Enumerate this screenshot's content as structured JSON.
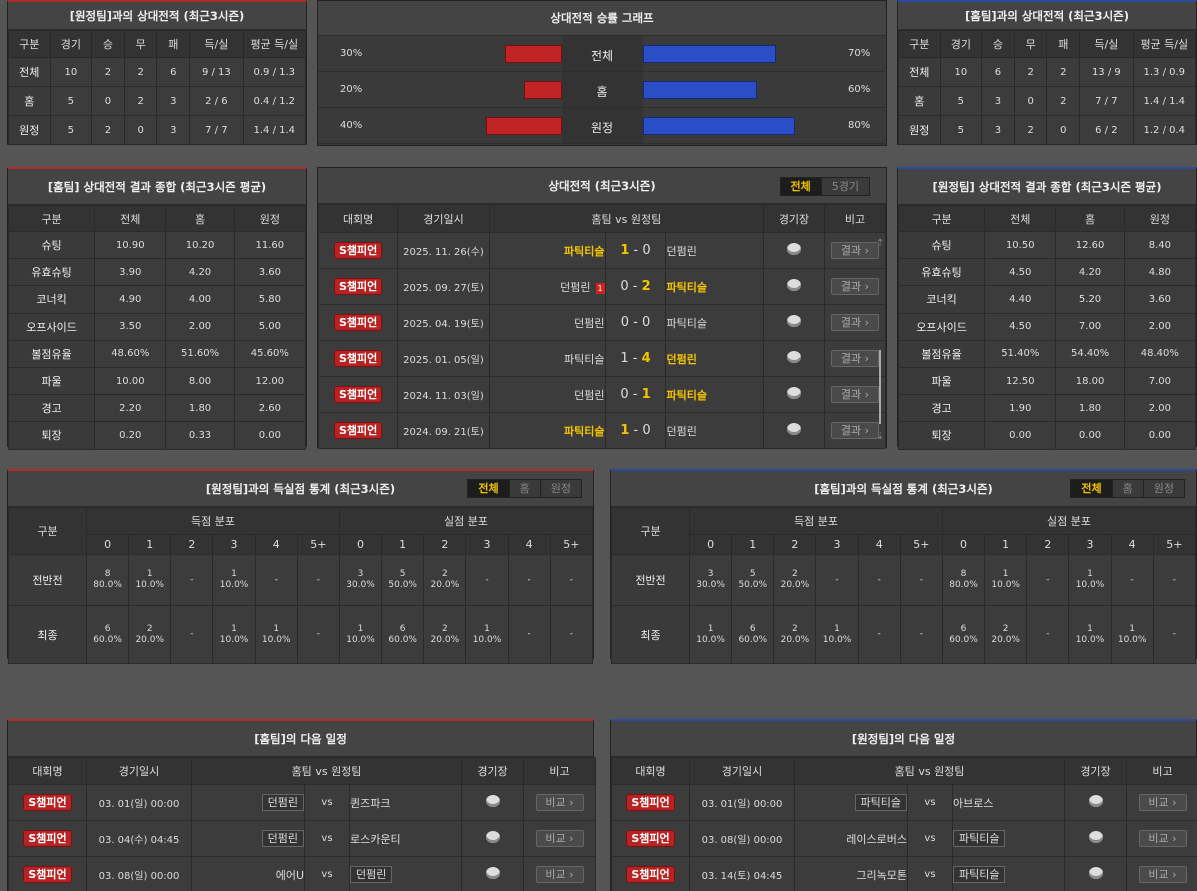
{
  "h2h_away": {
    "title": "[원정팀]과의 상대전적 (최근3시즌)",
    "headers": [
      "구분",
      "경기",
      "승",
      "무",
      "패",
      "득/실",
      "평균 득/실"
    ],
    "rows": [
      [
        "전체",
        "10",
        "2",
        "2",
        "6",
        "9 / 13",
        "0.9 / 1.3"
      ],
      [
        "홈",
        "5",
        "0",
        "2",
        "3",
        "2 / 6",
        "0.4 / 1.2"
      ],
      [
        "원정",
        "5",
        "2",
        "0",
        "3",
        "7 / 7",
        "1.4 / 1.4"
      ]
    ]
  },
  "h2h_home": {
    "title": "[홈팀]과의 상대전적 (최근3시즌)",
    "headers": [
      "구분",
      "경기",
      "승",
      "무",
      "패",
      "득/실",
      "평균 득/실"
    ],
    "rows": [
      [
        "전체",
        "10",
        "6",
        "2",
        "2",
        "13 / 9",
        "1.3 / 0.9"
      ],
      [
        "홈",
        "5",
        "3",
        "0",
        "2",
        "7 / 7",
        "1.4 / 1.4"
      ],
      [
        "원정",
        "5",
        "3",
        "2",
        "0",
        "6 / 2",
        "1.2 / 0.4"
      ]
    ]
  },
  "win_graph": {
    "title": "상대전적 승률 그래프",
    "rows": [
      {
        "label": "전체",
        "left": "30%",
        "right": "70%",
        "left_val": 30,
        "right_val": 70
      },
      {
        "label": "홈",
        "left": "20%",
        "right": "60%",
        "left_val": 20,
        "right_val": 60
      },
      {
        "label": "원정",
        "left": "40%",
        "right": "80%",
        "left_val": 40,
        "right_val": 80
      }
    ]
  },
  "home_summary": {
    "title": "[홈팀] 상대전적 결과 종합 (최근3시즌 평균)",
    "headers": [
      "구분",
      "전체",
      "홈",
      "원정"
    ],
    "rows": [
      [
        "슈팅",
        "10.90",
        "10.20",
        "11.60"
      ],
      [
        "유효슈팅",
        "3.90",
        "4.20",
        "3.60"
      ],
      [
        "코너킥",
        "4.90",
        "4.00",
        "5.80"
      ],
      [
        "오프사이드",
        "3.50",
        "2.00",
        "5.00"
      ],
      [
        "볼점유율",
        "48.60%",
        "51.60%",
        "45.60%"
      ],
      [
        "파울",
        "10.00",
        "8.00",
        "12.00"
      ],
      [
        "경고",
        "2.20",
        "1.80",
        "2.60"
      ],
      [
        "퇴장",
        "0.20",
        "0.33",
        "0.00"
      ]
    ]
  },
  "away_summary": {
    "title": "[원정팀] 상대전적 결과 종합 (최근3시즌 평균)",
    "headers": [
      "구분",
      "전체",
      "홈",
      "원정"
    ],
    "rows": [
      [
        "슈팅",
        "10.50",
        "12.60",
        "8.40"
      ],
      [
        "유효슈팅",
        "4.50",
        "4.20",
        "4.80"
      ],
      [
        "코너킥",
        "4.40",
        "5.20",
        "3.60"
      ],
      [
        "오프사이드",
        "4.50",
        "7.00",
        "2.00"
      ],
      [
        "볼점유율",
        "51.40%",
        "54.40%",
        "48.40%"
      ],
      [
        "파울",
        "12.50",
        "18.00",
        "7.00"
      ],
      [
        "경고",
        "1.90",
        "1.80",
        "2.00"
      ],
      [
        "퇴장",
        "0.00",
        "0.00",
        "0.00"
      ]
    ]
  },
  "h2h_matches": {
    "title": "상대전적 (최근3시즌)",
    "tabs": [
      "전체",
      "5경기"
    ],
    "headers": {
      "league": "대회명",
      "date": "경기일시",
      "home": "홈팀",
      "vs": "vs",
      "away": "원정팀",
      "stadium": "경기장",
      "note": "비고"
    },
    "rows": [
      {
        "league": "S챔피언",
        "date": "2025. 11. 26(수)",
        "home": "파틱티슬",
        "hs": "1",
        "as": "0",
        "away": "던펌린",
        "win": "home",
        "card": ""
      },
      {
        "league": "S챔피언",
        "date": "2025. 09. 27(토)",
        "home": "던펌린",
        "hs": "0",
        "as": "2",
        "away": "파틱티슬",
        "win": "away",
        "card": "1"
      },
      {
        "league": "S챔피언",
        "date": "2025. 04. 19(토)",
        "home": "던펌린",
        "hs": "0",
        "as": "0",
        "away": "파틱티슬",
        "win": "none",
        "card": ""
      },
      {
        "league": "S챔피언",
        "date": "2025. 01. 05(일)",
        "home": "파틱티슬",
        "hs": "1",
        "as": "4",
        "away": "던펌린",
        "win": "away",
        "card": ""
      },
      {
        "league": "S챔피언",
        "date": "2024. 11. 03(일)",
        "home": "던펌린",
        "hs": "0",
        "as": "1",
        "away": "파틱티슬",
        "win": "away",
        "card": ""
      },
      {
        "league": "S챔피언",
        "date": "2024. 09. 21(토)",
        "home": "파틱티슬",
        "hs": "1",
        "as": "0",
        "away": "던펌린",
        "win": "home",
        "card": ""
      }
    ],
    "result_label": "결과"
  },
  "goal_away": {
    "title": "[원정팀]과의 득실점 통계 (최근3시즌)",
    "tabs": [
      "전체",
      "홈",
      "원정"
    ],
    "col_label": "구분",
    "scored": "득점 분포",
    "conceded": "실점 분포",
    "nums": [
      "0",
      "1",
      "2",
      "3",
      "4",
      "5+"
    ],
    "rows": [
      {
        "label": "전반전",
        "cells": [
          [
            "8",
            "80.0%"
          ],
          [
            "1",
            "10.0%"
          ],
          [
            "-",
            ""
          ],
          [
            "1",
            "10.0%"
          ],
          [
            "-",
            ""
          ],
          [
            "-",
            ""
          ],
          [
            "3",
            "30.0%"
          ],
          [
            "5",
            "50.0%"
          ],
          [
            "2",
            "20.0%"
          ],
          [
            "-",
            ""
          ],
          [
            "-",
            ""
          ],
          [
            "-",
            ""
          ]
        ]
      },
      {
        "label": "최종",
        "cells": [
          [
            "6",
            "60.0%"
          ],
          [
            "2",
            "20.0%"
          ],
          [
            "-",
            ""
          ],
          [
            "1",
            "10.0%"
          ],
          [
            "1",
            "10.0%"
          ],
          [
            "-",
            ""
          ],
          [
            "1",
            "10.0%"
          ],
          [
            "6",
            "60.0%"
          ],
          [
            "2",
            "20.0%"
          ],
          [
            "1",
            "10.0%"
          ],
          [
            "-",
            ""
          ],
          [
            "-",
            ""
          ]
        ]
      }
    ]
  },
  "goal_home": {
    "title": "[홈팀]과의 득실점 통계 (최근3시즌)",
    "tabs": [
      "전체",
      "홈",
      "원정"
    ],
    "col_label": "구분",
    "scored": "득점 분포",
    "conceded": "실점 분포",
    "nums": [
      "0",
      "1",
      "2",
      "3",
      "4",
      "5+"
    ],
    "rows": [
      {
        "label": "전반전",
        "cells": [
          [
            "3",
            "30.0%"
          ],
          [
            "5",
            "50.0%"
          ],
          [
            "2",
            "20.0%"
          ],
          [
            "-",
            ""
          ],
          [
            "-",
            ""
          ],
          [
            "-",
            ""
          ],
          [
            "8",
            "80.0%"
          ],
          [
            "1",
            "10.0%"
          ],
          [
            "-",
            ""
          ],
          [
            "1",
            "10.0%"
          ],
          [
            "-",
            ""
          ],
          [
            "-",
            ""
          ]
        ]
      },
      {
        "label": "최종",
        "cells": [
          [
            "1",
            "10.0%"
          ],
          [
            "6",
            "60.0%"
          ],
          [
            "2",
            "20.0%"
          ],
          [
            "1",
            "10.0%"
          ],
          [
            "-",
            ""
          ],
          [
            "-",
            ""
          ],
          [
            "6",
            "60.0%"
          ],
          [
            "2",
            "20.0%"
          ],
          [
            "-",
            ""
          ],
          [
            "1",
            "10.0%"
          ],
          [
            "1",
            "10.0%"
          ],
          [
            "-",
            ""
          ]
        ]
      }
    ]
  },
  "next_home": {
    "title": "[홈팀]의 다음 일정",
    "headers": {
      "league": "대회명",
      "date": "경기일시",
      "home": "홈팀",
      "vs": "vs",
      "away": "원정팀",
      "stadium": "경기장",
      "note": "비고"
    },
    "rows": [
      {
        "league": "S챔피언",
        "date": "03. 01(일) 00:00",
        "home": "던펌린",
        "away": "퀸즈파크",
        "hl": "home"
      },
      {
        "league": "S챔피언",
        "date": "03. 04(수) 04:45",
        "home": "던펌린",
        "away": "로스카운티",
        "hl": "home"
      },
      {
        "league": "S챔피언",
        "date": "03. 08(일) 00:00",
        "home": "에어U",
        "away": "던펌린",
        "hl": "away"
      }
    ],
    "btn": "비교"
  },
  "next_away": {
    "title": "[원정팀]의 다음 일정",
    "headers": {
      "league": "대회명",
      "date": "경기일시",
      "home": "홈팀",
      "vs": "vs",
      "away": "원정팀",
      "stadium": "경기장",
      "note": "비고"
    },
    "rows": [
      {
        "league": "S챔피언",
        "date": "03. 01(일) 00:00",
        "home": "파틱티슬",
        "away": "아브로스",
        "hl": "home"
      },
      {
        "league": "S챔피언",
        "date": "03. 08(일) 00:00",
        "home": "레이스로버스",
        "away": "파틱티슬",
        "hl": "away"
      },
      {
        "league": "S챔피언",
        "date": "03. 14(토) 04:45",
        "home": "그리녹모톤",
        "away": "파틱티슬",
        "hl": "away"
      }
    ],
    "btn": "비교"
  }
}
